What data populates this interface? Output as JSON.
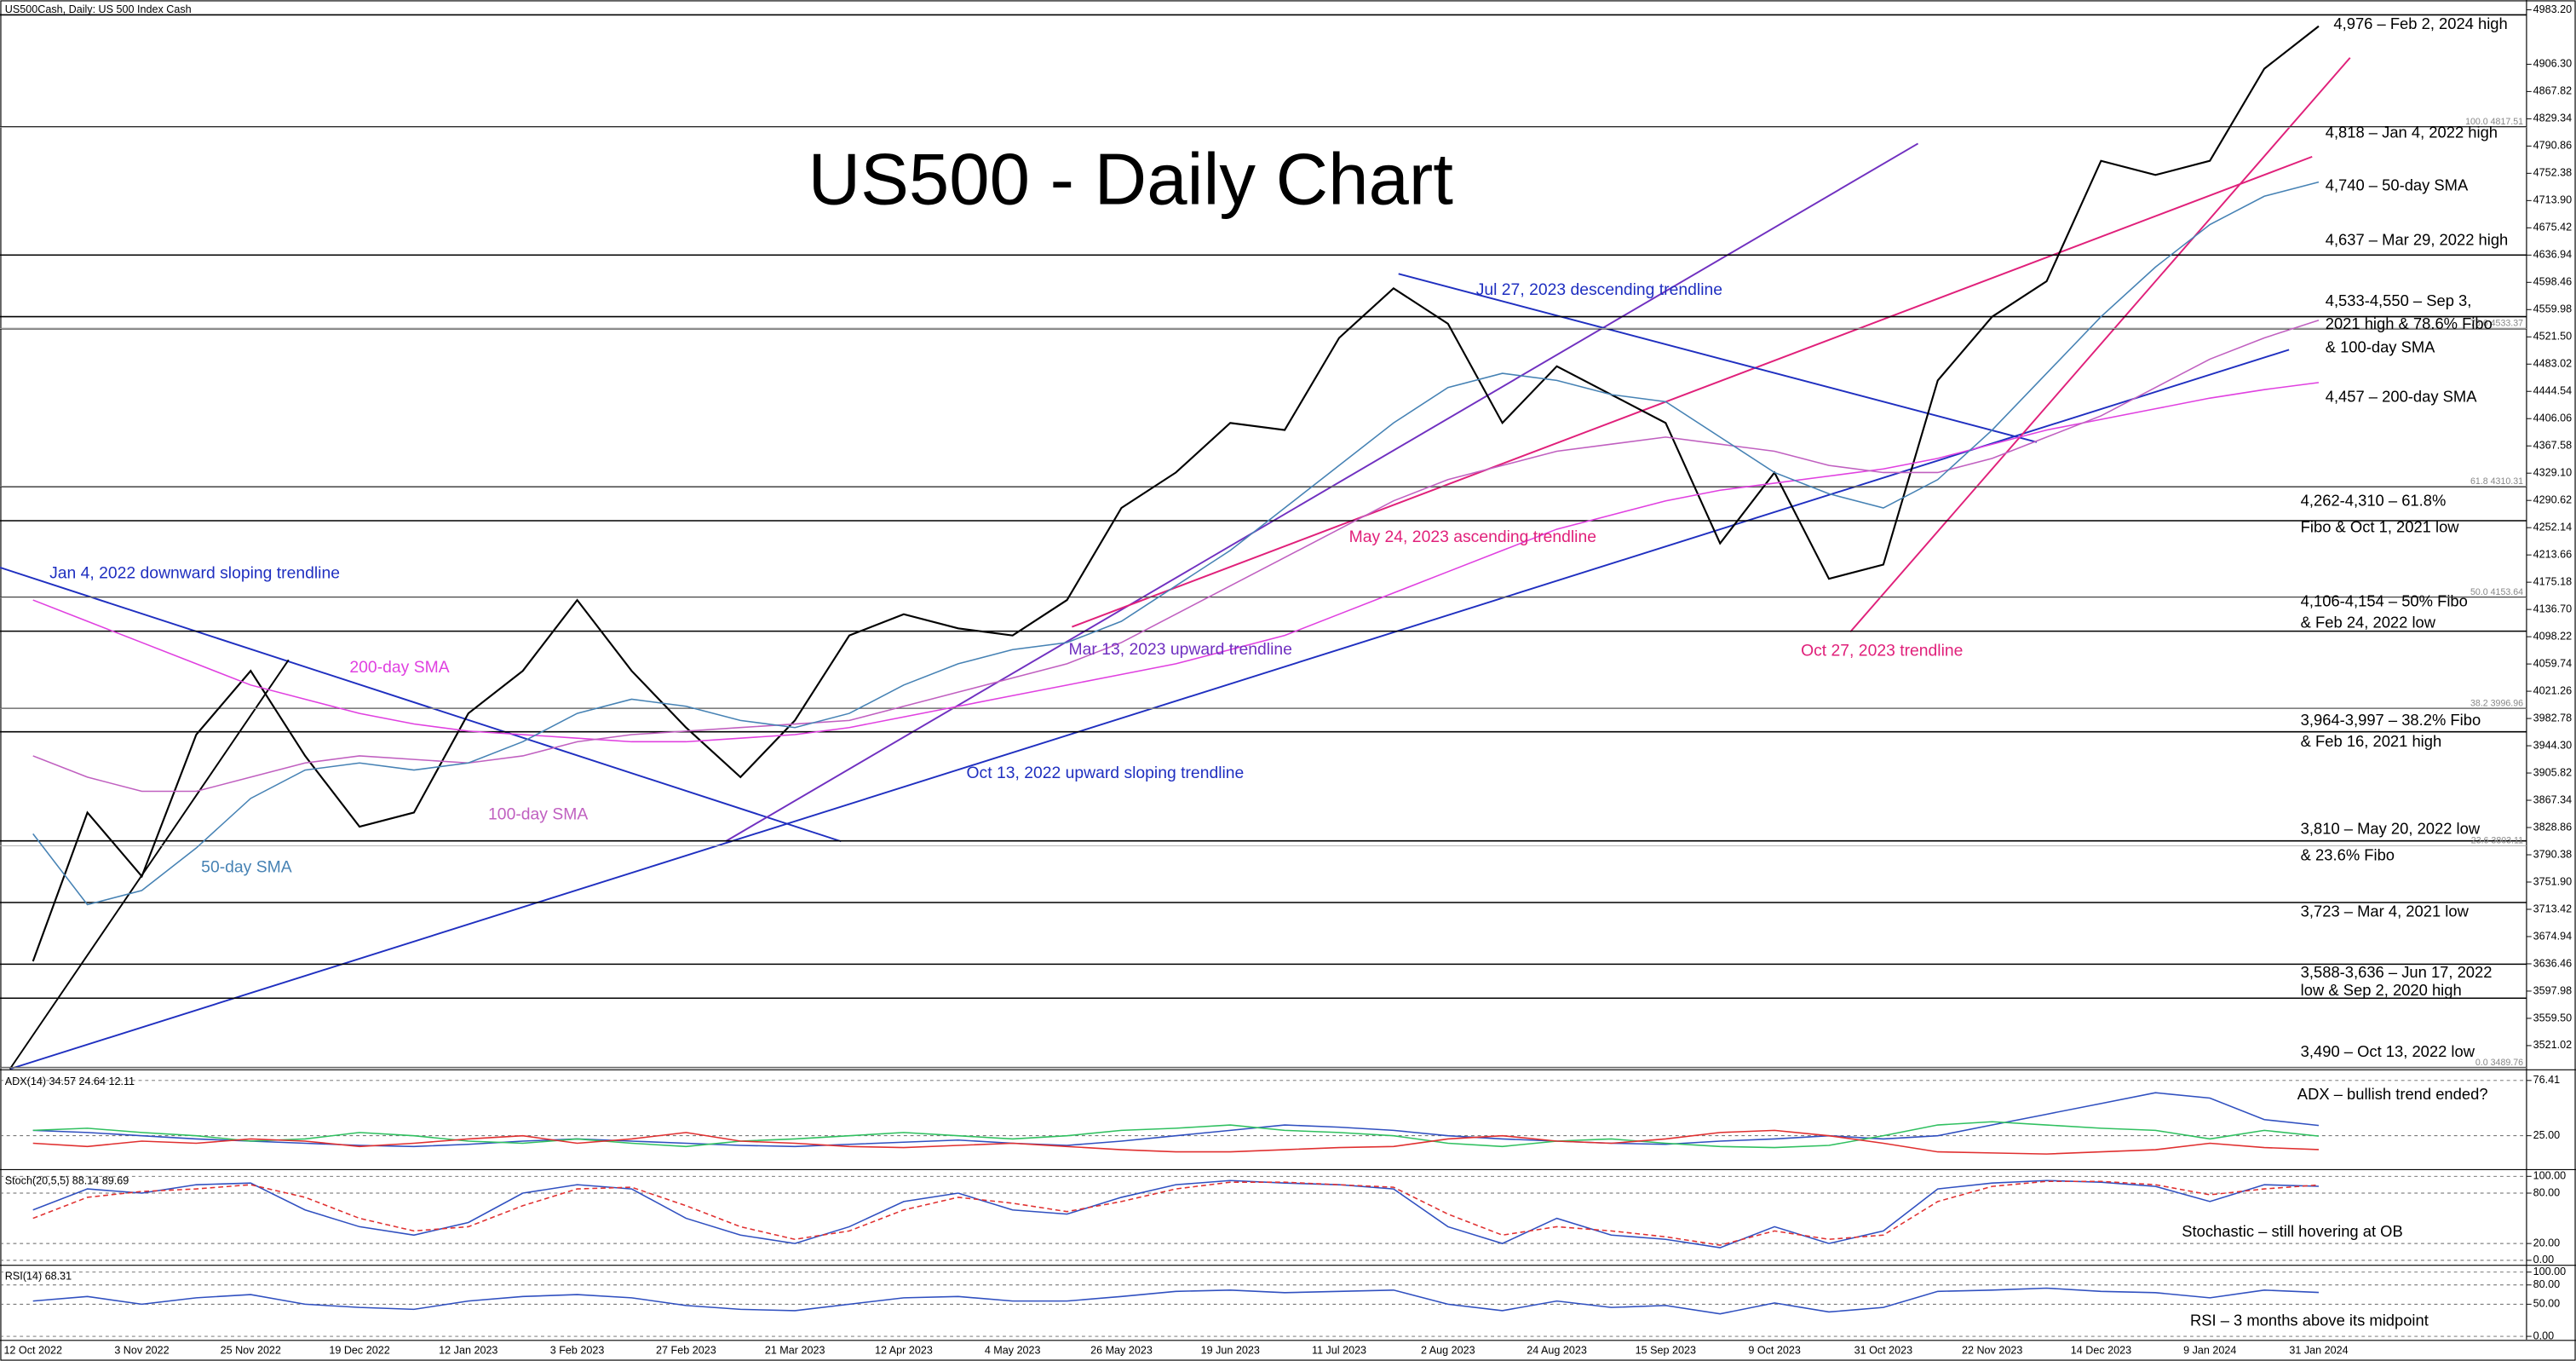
{
  "chart_data": [
    {
      "type": "line",
      "header": "US500Cash, Daily:  US 500 Index Cash",
      "title": "US500 - Daily Chart",
      "categories": [
        "12 Oct 2022",
        null,
        "3 Nov 2022",
        null,
        "25 Nov 2022",
        null,
        "19 Dec 2022",
        null,
        "12 Jan 2023",
        null,
        "3 Feb 2023",
        null,
        "27 Feb 2023",
        null,
        "21 Mar 2023",
        null,
        "12 Apr 2023",
        null,
        "4 May 2023",
        null,
        "26 May 2023",
        null,
        "19 Jun 2023",
        null,
        "11 Jul 2023",
        null,
        "2 Aug 2023",
        null,
        "24 Aug 2023",
        null,
        "15 Sep 2023",
        null,
        "9 Oct 2023",
        null,
        "31 Oct 2023",
        null,
        "22 Nov 2023",
        null,
        "14 Dec 2023",
        null,
        "9 Jan 2024",
        null,
        "31 Jan 2024"
      ],
      "series": [
        {
          "color": "#000000",
          "values": [
            3640,
            3850,
            3760,
            3960,
            4050,
            3930,
            3830,
            3850,
            3990,
            4050,
            4150,
            4050,
            3970,
            3900,
            3980,
            4100,
            4130,
            4110,
            4100,
            4150,
            4280,
            4330,
            4400,
            4390,
            4520,
            4590,
            4540,
            4400,
            4480,
            4440,
            4400,
            4230,
            4330,
            4180,
            4200,
            4460,
            4550,
            4600,
            4770,
            4750,
            4770,
            4900,
            4960
          ]
        },
        {
          "name": "200-day SMA",
          "color": "#e040e0",
          "values": [
            4150,
            4120,
            4090,
            4060,
            4030,
            4010,
            3990,
            3975,
            3965,
            3960,
            3955,
            3950,
            3950,
            3955,
            3960,
            3970,
            3985,
            4000,
            4015,
            4030,
            4045,
            4060,
            4080,
            4100,
            4130,
            4160,
            4190,
            4220,
            4250,
            4270,
            4290,
            4305,
            4315,
            4325,
            4335,
            4350,
            4370,
            4390,
            4405,
            4420,
            4435,
            4447,
            4457
          ]
        },
        {
          "name": "100-day SMA",
          "color": "#c060c0",
          "values": [
            3930,
            3900,
            3880,
            3880,
            3900,
            3920,
            3930,
            3925,
            3920,
            3930,
            3950,
            3960,
            3965,
            3970,
            3975,
            3980,
            4000,
            4020,
            4040,
            4060,
            4090,
            4130,
            4170,
            4210,
            4250,
            4290,
            4320,
            4340,
            4360,
            4370,
            4380,
            4370,
            4360,
            4340,
            4330,
            4330,
            4350,
            4380,
            4410,
            4450,
            4490,
            4520,
            4545
          ]
        },
        {
          "name": "50-day SMA",
          "color": "#4682b4",
          "values": [
            3820,
            3720,
            3740,
            3800,
            3870,
            3910,
            3920,
            3910,
            3920,
            3950,
            3990,
            4010,
            4000,
            3980,
            3970,
            3990,
            4030,
            4060,
            4080,
            4090,
            4120,
            4170,
            4220,
            4280,
            4340,
            4400,
            4450,
            4470,
            4460,
            4440,
            4430,
            4380,
            4330,
            4300,
            4280,
            4320,
            4390,
            4470,
            4550,
            4620,
            4680,
            4720,
            4740
          ]
        }
      ],
      "ylim": [
        3488,
        4997
      ],
      "yticks": [
        {
          "value": 4983.2,
          "label": "4983.20"
        },
        {
          "value": 4906.3,
          "label": "4906.30"
        },
        {
          "value": 4867.82,
          "label": "4867.82"
        },
        {
          "value": 4829.34,
          "label": "4829.34"
        },
        {
          "value": 4790.86,
          "label": "4790.86"
        },
        {
          "value": 4752.38,
          "label": "4752.38"
        },
        {
          "value": 4713.9,
          "label": "4713.90"
        },
        {
          "value": 4675.42,
          "label": "4675.42"
        },
        {
          "value": 4636.94,
          "label": "4636.94"
        },
        {
          "value": 4598.46,
          "label": "4598.46"
        },
        {
          "value": 4559.98,
          "label": "4559.98"
        },
        {
          "value": 4521.5,
          "label": "4521.50"
        },
        {
          "value": 4483.02,
          "label": "4483.02"
        },
        {
          "value": 4444.54,
          "label": "4444.54"
        },
        {
          "value": 4406.06,
          "label": "4406.06"
        },
        {
          "value": 4367.58,
          "label": "4367.58"
        },
        {
          "value": 4329.1,
          "label": "4329.10"
        },
        {
          "value": 4290.62,
          "label": "4290.62"
        },
        {
          "value": 4252.14,
          "label": "4252.14"
        },
        {
          "value": 4213.66,
          "label": "4213.66"
        },
        {
          "value": 4175.18,
          "label": "4175.18"
        },
        {
          "value": 4136.7,
          "label": "4136.70"
        },
        {
          "value": 4098.22,
          "label": "4098.22"
        },
        {
          "value": 4059.74,
          "label": "4059.74"
        },
        {
          "value": 4021.26,
          "label": "4021.26"
        },
        {
          "value": 3982.78,
          "label": "3982.78"
        },
        {
          "value": 3944.3,
          "label": "3944.30"
        },
        {
          "value": 3905.82,
          "label": "3905.82"
        },
        {
          "value": 3867.34,
          "label": "3867.34"
        },
        {
          "value": 3828.86,
          "label": "3828.86"
        },
        {
          "value": 3790.38,
          "label": "3790.38"
        },
        {
          "value": 3751.9,
          "label": "3751.90"
        },
        {
          "value": 3713.42,
          "label": "3713.42"
        },
        {
          "value": 3674.94,
          "label": "3674.94"
        },
        {
          "value": 3636.46,
          "label": "3636.46"
        },
        {
          "value": 3597.98,
          "label": "3597.98"
        },
        {
          "value": 3559.5,
          "label": "3559.50"
        },
        {
          "value": 3521.02,
          "label": "3521.02"
        }
      ],
      "grid": false,
      "levels": [
        4976,
        4818,
        4637,
        4550,
        4533,
        4310,
        4262,
        4154,
        4106,
        3997,
        3964,
        3810,
        3723,
        3636,
        3588,
        3490
      ],
      "fibo": [
        {
          "value": 4817.51,
          "label": "100.0 4817.51"
        },
        {
          "value": 4533.37,
          "label": "78.6 4533.37"
        },
        {
          "value": 4310.31,
          "label": "61.8 4310.31"
        },
        {
          "value": 4153.64,
          "label": "50.0 4153.64"
        },
        {
          "value": 3996.96,
          "label": "38.2 3996.96"
        },
        {
          "value": 3803.11,
          "label": "23.6 3803.11"
        },
        {
          "value": 3489.76,
          "label": "0.0 3489.76"
        }
      ],
      "notes": [
        [
          "4,976 – Feb 2, 2024 high"
        ],
        [
          "4,818 – Jan 4, 2022 high"
        ],
        [
          "4,740 – 50-day SMA"
        ],
        [
          "4,637 – Mar 29, 2022 high"
        ],
        [
          "4,533-4,550 – Sep 3,",
          "2021 high & 78.6% Fibo",
          "& 100-day SMA"
        ],
        [
          "4,457 – 200-day SMA"
        ],
        [
          "4,262-4,310 – 61.8%",
          "Fibo & Oct 1, 2021 low"
        ],
        [
          "4,106-4,154 – 50% Fibo",
          "& Feb 24, 2022 low"
        ],
        [
          "3,964-3,997 – 38.2% Fibo",
          "& Feb 16, 2021 high"
        ],
        [
          "3,810 – May 20, 2022 low",
          "& 23.6% Fibo"
        ],
        [
          "3,723 – Mar 4, 2021 low"
        ],
        [
          "3,588-3,636 – Jun 17, 2022",
          "low & Sep 2, 2020 high"
        ],
        [
          "3,490 – Oct 13, 2022 low"
        ]
      ],
      "trendlines": [
        "Jan 4, 2022 downward sloping trendline",
        "Mar 13, 2023 upward trendline",
        "Oct 13, 2022 upward sloping trendline",
        "May 24, 2023 ascending trendline",
        "Jul 27, 2023 descending trendline",
        "Oct 27, 2023 trendline"
      ]
    },
    {
      "type": "line",
      "header": "ADX(14) 34.57 24.64 12.11",
      "note": "ADX – bullish trend ended?",
      "series": [
        {
          "color": "#3050c0",
          "values": [
            30,
            28,
            25,
            22,
            20,
            18,
            16,
            15,
            17,
            20,
            22,
            20,
            18,
            16,
            15,
            17,
            19,
            21,
            18,
            16,
            20,
            25,
            30,
            35,
            33,
            30,
            25,
            22,
            20,
            18,
            17,
            20,
            22,
            25,
            22,
            25,
            35,
            45,
            55,
            65,
            60,
            40,
            34.57
          ]
        },
        {
          "color": "#30c060",
          "values": [
            30,
            32,
            28,
            25,
            20,
            22,
            28,
            25,
            20,
            18,
            22,
            18,
            15,
            20,
            22,
            25,
            28,
            25,
            22,
            25,
            30,
            32,
            35,
            30,
            28,
            25,
            18,
            15,
            20,
            22,
            18,
            15,
            14,
            16,
            25,
            35,
            38,
            35,
            32,
            30,
            22,
            30,
            24.64
          ]
        },
        {
          "color": "#e03030",
          "values": [
            18,
            15,
            20,
            18,
            22,
            20,
            15,
            18,
            22,
            25,
            18,
            22,
            28,
            20,
            18,
            15,
            14,
            16,
            18,
            15,
            12,
            10,
            10,
            12,
            14,
            15,
            22,
            25,
            20,
            18,
            22,
            28,
            30,
            25,
            18,
            10,
            9,
            8,
            10,
            12,
            18,
            14,
            12.11
          ]
        }
      ],
      "ylim": [
        -5,
        84
      ],
      "yticks": [
        76.41,
        {
          "value": 25,
          "label": "25.00"
        }
      ],
      "grid": true
    },
    {
      "type": "line",
      "header": "Stoch(20,5,5) 88.14 89.69",
      "note": "Stochastic – still hovering at OB",
      "series": [
        {
          "color": "#3050c0",
          "values": [
            60,
            85,
            80,
            90,
            92,
            60,
            40,
            30,
            45,
            80,
            90,
            85,
            50,
            30,
            20,
            40,
            70,
            80,
            60,
            55,
            75,
            90,
            95,
            92,
            90,
            85,
            40,
            20,
            50,
            30,
            25,
            15,
            40,
            20,
            35,
            85,
            92,
            95,
            93,
            88,
            70,
            90,
            88.14
          ]
        },
        {
          "color": "#e03030",
          "dash": true,
          "values": [
            50,
            75,
            82,
            85,
            90,
            75,
            50,
            35,
            40,
            65,
            85,
            87,
            65,
            40,
            25,
            35,
            60,
            75,
            68,
            58,
            70,
            85,
            93,
            93,
            90,
            87,
            55,
            30,
            40,
            35,
            28,
            18,
            35,
            25,
            30,
            70,
            88,
            94,
            94,
            90,
            78,
            85,
            89.69
          ]
        }
      ],
      "ylim": [
        -4,
        106
      ],
      "yticks": [
        {
          "value": 100,
          "label": "100.00"
        },
        {
          "value": 80,
          "label": "80.00"
        },
        {
          "value": 20,
          "label": "20.00"
        },
        {
          "value": 0,
          "label": "0.00"
        }
      ],
      "grid": true
    },
    {
      "type": "line",
      "header": "RSI(14) 68.31",
      "note": "RSI – 3 months above its midpoint",
      "series": [
        {
          "color": "#3050c0",
          "values": [
            55,
            62,
            50,
            60,
            65,
            50,
            45,
            42,
            55,
            62,
            65,
            60,
            48,
            42,
            40,
            50,
            60,
            62,
            55,
            55,
            62,
            70,
            72,
            68,
            70,
            72,
            50,
            40,
            55,
            45,
            48,
            35,
            52,
            38,
            45,
            70,
            72,
            75,
            70,
            68,
            60,
            72,
            68.31
          ]
        }
      ],
      "ylim": [
        -5,
        108
      ],
      "yticks": [
        {
          "value": 100,
          "label": "100.00"
        },
        {
          "value": 80,
          "label": "80.00"
        },
        {
          "value": 50,
          "label": "50.00"
        },
        {
          "value": 0,
          "label": "0.00"
        }
      ],
      "grid": true
    }
  ]
}
